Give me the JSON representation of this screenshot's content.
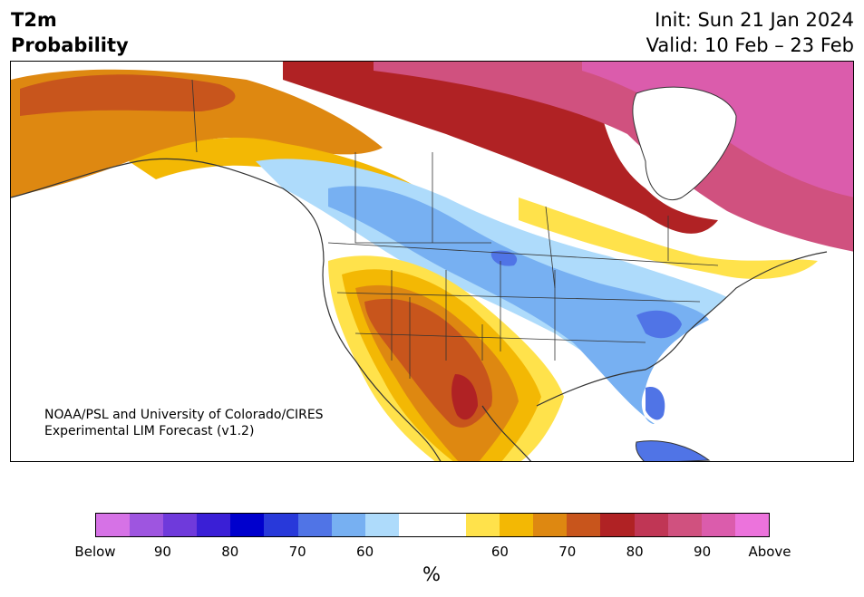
{
  "header": {
    "title_line1": "T2m",
    "title_line2": "Probability",
    "init": "Init: Sun 21 Jan 2024",
    "valid": "Valid: 10 Feb – 23 Feb"
  },
  "map": {
    "region": "North America",
    "credit_line1": "NOAA/PSL and University of Colorado/CIRES",
    "credit_line2": "Experimental LIM Forecast (v1.2)"
  },
  "colorbar": {
    "unit": "%",
    "colors": [
      "#d672e6",
      "#9e55e0",
      "#6f3adb",
      "#3a1fd6",
      "#0000cd",
      "#2839da",
      "#5074e6",
      "#77b0f2",
      "#aedbfb",
      "#ffffff",
      "#ffffff",
      "#ffe24b",
      "#f3b804",
      "#de8811",
      "#c8551c",
      "#b02224",
      "#c03655",
      "#d0517f",
      "#db5cac",
      "#ec73dc"
    ],
    "labels": [
      "Below",
      "90",
      "80",
      "70",
      "60",
      "60",
      "70",
      "80",
      "90",
      "Above"
    ]
  }
}
